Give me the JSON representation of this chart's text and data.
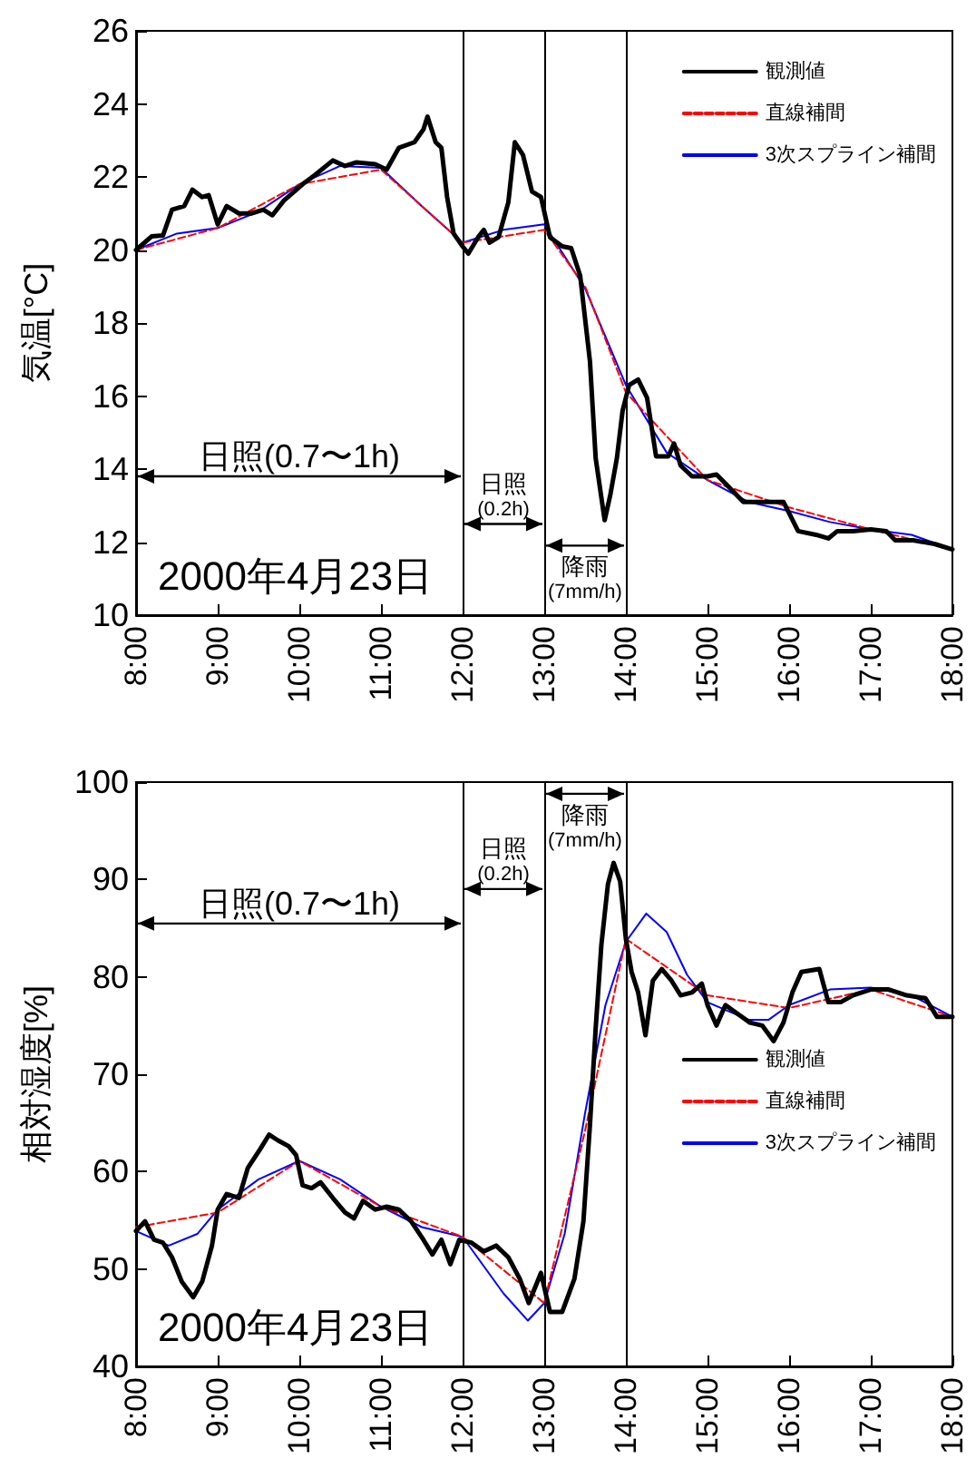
{
  "chart_data": [
    {
      "type": "line",
      "ylabel": "気温[°C]",
      "x": [
        8,
        9,
        10,
        11,
        12,
        13,
        13.5,
        14,
        14.5,
        15,
        16,
        17,
        18
      ],
      "xlim": [
        8,
        18
      ],
      "ylim": [
        10,
        26
      ],
      "xticks": [
        {
          "value": 8,
          "label": "8:00"
        },
        {
          "value": 9,
          "label": "9:00"
        },
        {
          "value": 10,
          "label": "10:00"
        },
        {
          "value": 11,
          "label": "11:00"
        },
        {
          "value": 12,
          "label": "12:00"
        },
        {
          "value": 13,
          "label": "13:00"
        },
        {
          "value": 14,
          "label": "14:00"
        },
        {
          "value": 15,
          "label": "15:00"
        },
        {
          "value": 16,
          "label": "16:00"
        },
        {
          "value": 17,
          "label": "17:00"
        },
        {
          "value": 18,
          "label": "18:00"
        }
      ],
      "yticks": [
        10,
        12,
        14,
        16,
        18,
        20,
        22,
        24,
        26
      ],
      "series": [
        {
          "name": "観測値",
          "color": "#000000",
          "line_style": "solid",
          "x": [
            8.0,
            8.19,
            8.33,
            8.44,
            8.59,
            8.69,
            8.81,
            8.89,
            9.0,
            9.11,
            9.26,
            9.41,
            9.56,
            9.67,
            9.81,
            10.04,
            10.19,
            10.41,
            10.56,
            10.7,
            10.93,
            11.07,
            11.22,
            11.41,
            11.52,
            11.57,
            11.67,
            11.74,
            11.81,
            11.89,
            12.0,
            12.07,
            12.19,
            12.26,
            12.33,
            12.44,
            12.56,
            12.64,
            12.74,
            12.85,
            12.96,
            13.07,
            13.22,
            13.33,
            13.44,
            13.56,
            13.63,
            13.74,
            13.81,
            13.89,
            13.96,
            14.04,
            14.15,
            14.26,
            14.37,
            14.52,
            14.59,
            14.67,
            14.81,
            15.0,
            15.11,
            15.22,
            15.44,
            15.67,
            15.93,
            16.11,
            16.33,
            16.48,
            16.59,
            16.78,
            17.0,
            17.19,
            17.3,
            17.52,
            17.78,
            18.0
          ],
          "values": [
            20.0,
            20.37,
            20.4,
            21.1,
            21.2,
            21.65,
            21.45,
            21.5,
            20.7,
            21.2,
            21.0,
            21.0,
            21.1,
            20.95,
            21.35,
            21.8,
            22.05,
            22.45,
            22.3,
            22.4,
            22.35,
            22.2,
            22.8,
            22.95,
            23.3,
            23.65,
            22.95,
            22.8,
            21.45,
            20.45,
            20.1,
            19.9,
            20.35,
            20.55,
            20.2,
            20.35,
            21.3,
            22.95,
            22.6,
            21.6,
            21.45,
            20.35,
            20.1,
            20.05,
            19.3,
            16.95,
            14.3,
            12.6,
            13.3,
            14.3,
            15.6,
            16.3,
            16.45,
            15.95,
            14.35,
            14.35,
            14.7,
            14.1,
            13.8,
            13.8,
            13.85,
            13.6,
            13.1,
            13.1,
            13.1,
            12.3,
            12.2,
            12.1,
            12.3,
            12.3,
            12.35,
            12.3,
            12.05,
            12.05,
            11.95,
            11.8
          ]
        },
        {
          "name": "直線補間",
          "color": "#ff0000",
          "line_style": "dashed",
          "values": [
            20.0,
            20.6,
            21.8,
            22.2,
            20.2,
            20.55,
            19.0,
            16.1,
            14.9,
            13.7,
            12.95,
            12.35,
            11.8
          ]
        },
        {
          "name": "3次スプライン補間",
          "color": "#0000ff",
          "line_style": "solid",
          "x": [
            8,
            8.5,
            9,
            9.5,
            10,
            10.5,
            11,
            11.5,
            12,
            12.5,
            13,
            13.5,
            14,
            14.5,
            15,
            15.5,
            16,
            16.5,
            17,
            17.5,
            18
          ],
          "values": [
            20.0,
            20.45,
            20.6,
            21.05,
            21.8,
            22.3,
            22.25,
            21.2,
            20.2,
            20.55,
            20.7,
            18.95,
            16.3,
            14.45,
            13.7,
            13.1,
            12.85,
            12.55,
            12.35,
            12.2,
            11.8
          ]
        }
      ],
      "ref_lines": [
        {
          "axis": "x",
          "value": 12,
          "color": "#000000"
        },
        {
          "axis": "x",
          "value": 13,
          "color": "#000000"
        },
        {
          "axis": "x",
          "value": 14,
          "color": "#000000"
        }
      ],
      "annotations": [
        "日照(0.7〜1h)",
        "日照\n(0.2h)",
        "降雨\n(7mm/h)",
        "2000年4月23日"
      ],
      "marker": "none",
      "legend": "top right"
    },
    {
      "type": "line",
      "ylabel": "相対湿度[%]",
      "x": [
        8,
        9,
        10,
        11,
        12,
        12.5,
        13,
        13.5,
        14,
        15,
        16,
        17,
        18
      ],
      "xlim": [
        8,
        18
      ],
      "ylim": [
        40,
        100
      ],
      "xticks": [
        {
          "value": 8,
          "label": "8:00"
        },
        {
          "value": 9,
          "label": "9:00"
        },
        {
          "value": 10,
          "label": "10:00"
        },
        {
          "value": 11,
          "label": "11:00"
        },
        {
          "value": 12,
          "label": "12:00"
        },
        {
          "value": 13,
          "label": "13:00"
        },
        {
          "value": 14,
          "label": "14:00"
        },
        {
          "value": 15,
          "label": "15:00"
        },
        {
          "value": 16,
          "label": "16:00"
        },
        {
          "value": 17,
          "label": "17:00"
        },
        {
          "value": 18,
          "label": "18:00"
        }
      ],
      "yticks": [
        40,
        50,
        60,
        70,
        80,
        90,
        100
      ],
      "series": [
        {
          "name": "観測値",
          "color": "#000000",
          "line_style": "solid",
          "x": [
            8.0,
            8.11,
            8.22,
            8.33,
            8.44,
            8.56,
            8.7,
            8.81,
            8.93,
            9.0,
            9.11,
            9.26,
            9.37,
            9.52,
            9.63,
            9.74,
            9.87,
            9.96,
            10.04,
            10.15,
            10.26,
            10.41,
            10.56,
            10.67,
            10.78,
            10.93,
            11.07,
            11.22,
            11.37,
            11.52,
            11.63,
            11.74,
            11.85,
            11.96,
            12.11,
            12.26,
            12.41,
            12.56,
            12.7,
            12.81,
            12.96,
            13.07,
            13.22,
            13.37,
            13.48,
            13.56,
            13.63,
            13.7,
            13.78,
            13.85,
            13.93,
            14.0,
            14.07,
            14.15,
            14.24,
            14.33,
            14.44,
            14.56,
            14.67,
            14.81,
            14.93,
            15.0,
            15.11,
            15.22,
            15.37,
            15.52,
            15.67,
            15.81,
            15.93,
            16.04,
            16.15,
            16.37,
            16.48,
            16.63,
            16.78,
            17.0,
            17.22,
            17.44,
            17.67,
            17.81,
            18.0
          ],
          "values": [
            53.9,
            54.9,
            53.0,
            52.7,
            51.2,
            48.7,
            47.1,
            48.7,
            52.4,
            56.1,
            57.7,
            57.3,
            60.4,
            62.3,
            63.8,
            63.2,
            62.6,
            61.7,
            58.6,
            58.3,
            58.9,
            57.3,
            55.8,
            55.2,
            57.0,
            56.1,
            56.4,
            56.1,
            54.9,
            53.0,
            51.5,
            53.0,
            50.5,
            53.0,
            52.7,
            51.8,
            52.4,
            51.2,
            49.0,
            46.5,
            49.6,
            45.6,
            45.6,
            49.0,
            54.9,
            64.8,
            74.7,
            83.3,
            89.5,
            91.7,
            89.8,
            83.9,
            80.5,
            78.4,
            74.0,
            79.6,
            80.8,
            79.6,
            78.1,
            78.4,
            79.3,
            77.1,
            75.0,
            77.1,
            76.2,
            75.3,
            75.0,
            73.4,
            75.3,
            78.4,
            80.5,
            80.8,
            77.4,
            77.4,
            78.1,
            78.7,
            78.7,
            78.1,
            77.8,
            75.9,
            75.9
          ]
        },
        {
          "name": "直線補間",
          "color": "#ff0000",
          "line_style": "dashed",
          "values": [
            54.3,
            55.8,
            61.1,
            56.4,
            53.3,
            49.9,
            46.5,
            64.2,
            83.9,
            78.1,
            76.8,
            78.7,
            75.9
          ]
        },
        {
          "name": "3次スプライン補間",
          "color": "#0000ff",
          "line_style": "solid",
          "x": [
            8,
            8.4,
            8.75,
            9,
            9.5,
            10,
            10.5,
            11,
            11.5,
            12,
            12.5,
            12.8,
            13,
            13.25,
            13.5,
            13.75,
            14,
            14.25,
            14.5,
            14.75,
            15,
            15.5,
            15.75,
            16,
            16.5,
            17,
            17.5,
            18
          ],
          "values": [
            53.9,
            52.4,
            53.6,
            56.1,
            59.2,
            61.1,
            59.2,
            56.4,
            54.3,
            53.3,
            47.5,
            44.7,
            46.5,
            53.6,
            66.0,
            77.1,
            83.6,
            86.5,
            84.6,
            80.2,
            77.4,
            75.6,
            75.6,
            77.1,
            78.7,
            78.9,
            78.1,
            75.9
          ]
        }
      ],
      "ref_lines": [
        {
          "axis": "x",
          "value": 12,
          "color": "#000000"
        },
        {
          "axis": "x",
          "value": 13,
          "color": "#000000"
        },
        {
          "axis": "x",
          "value": 14,
          "color": "#000000"
        }
      ],
      "annotations": [
        "日照(0.7〜1h)",
        "日照\n(0.2h)",
        "降雨\n(7mm/h)",
        "2000年4月23日"
      ],
      "marker": "none",
      "legend": "right"
    }
  ]
}
